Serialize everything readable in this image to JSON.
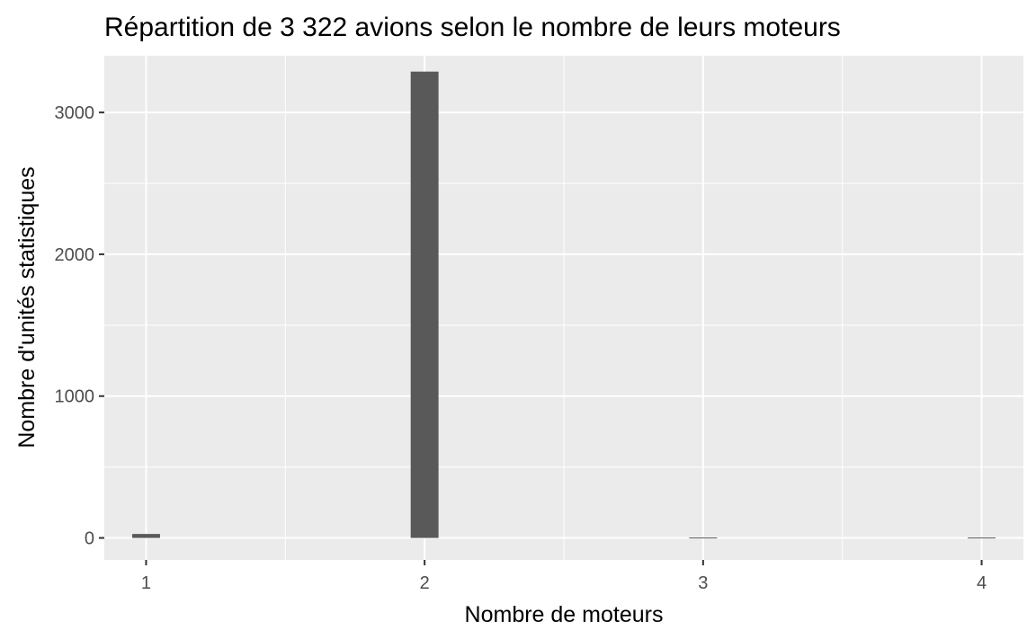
{
  "chart_data": {
    "type": "bar",
    "title": "Répartition de 3 322 avions selon le nombre de leurs moteurs",
    "xlabel": "Nombre de moteurs",
    "ylabel": "Nombre d'unités statistiques",
    "x": [
      1,
      2,
      3,
      4
    ],
    "values": [
      28,
      3288,
      3,
      3
    ],
    "x_ticks": [
      "1",
      "2",
      "3",
      "4"
    ],
    "y_ticks": [
      "0",
      "1000",
      "2000",
      "3000"
    ],
    "xlim": [
      0.99,
      4.01
    ],
    "ylim": [
      -155,
      3400
    ],
    "grid": true,
    "colors": {
      "panel": "#ebebeb",
      "grid": "#ffffff",
      "bar": "#595959",
      "tick_text": "#4d4d4d",
      "text": "#000000"
    }
  }
}
